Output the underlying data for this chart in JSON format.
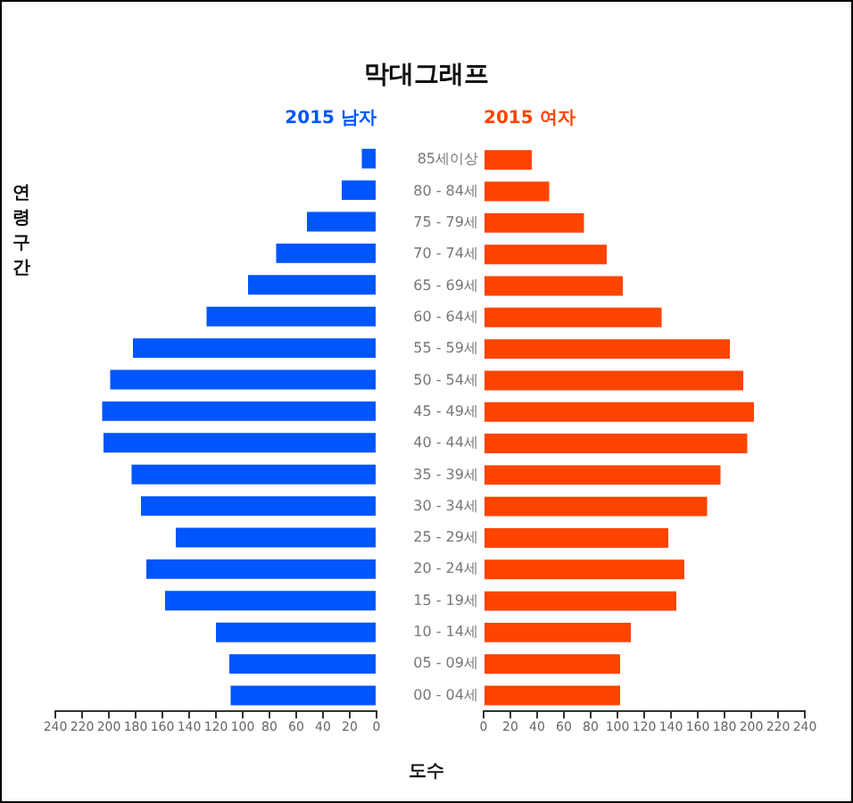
{
  "chart_data": [
    {
      "type": "bar",
      "orientation": "horizontal",
      "title": "막대그래프",
      "xlabel": "도수",
      "ylabel": "연령구간",
      "tick_labels": "x",
      "categories": [
        "85세이상",
        "80 - 84세",
        "75 - 79세",
        "70 - 74세",
        "65 - 69세",
        "60 - 64세",
        "55 - 59세",
        "50 - 54세",
        "45 - 49세",
        "40 - 44세",
        "35 - 39세",
        "30 - 34세",
        "25 - 29세",
        "20 - 24세",
        "15 - 19세",
        "10 - 14세",
        "05 - 09세",
        "00 - 04세"
      ],
      "series": [
        {
          "name": "2015 남자",
          "color": "#0055ff",
          "values": [
            11,
            26,
            52,
            75,
            96,
            127,
            182,
            199,
            205,
            204,
            183,
            176,
            150,
            172,
            158,
            120,
            110,
            109
          ]
        }
      ],
      "xlim": [
        240,
        0
      ],
      "xticks": [
        240,
        220,
        200,
        180,
        160,
        140,
        120,
        100,
        80,
        60,
        40,
        20,
        0
      ],
      "grid": false
    },
    {
      "type": "bar",
      "orientation": "horizontal",
      "categories": [
        "85세이상",
        "80 - 84세",
        "75 - 79세",
        "70 - 74세",
        "65 - 69세",
        "60 - 64세",
        "55 - 59세",
        "50 - 54세",
        "45 - 49세",
        "40 - 44세",
        "35 - 39세",
        "30 - 34세",
        "25 - 29세",
        "20 - 24세",
        "15 - 19세",
        "10 - 14세",
        "05 - 09세",
        "00 - 04세"
      ],
      "series": [
        {
          "name": "2015 여자",
          "color": "#ff4400",
          "values": [
            36,
            49,
            75,
            92,
            104,
            133,
            184,
            194,
            202,
            197,
            177,
            167,
            138,
            150,
            144,
            110,
            102,
            102
          ]
        }
      ],
      "xlim": [
        0,
        240
      ],
      "xticks": [
        0,
        20,
        40,
        60,
        80,
        100,
        120,
        140,
        160,
        180,
        200,
        220,
        240
      ],
      "grid": false
    }
  ]
}
